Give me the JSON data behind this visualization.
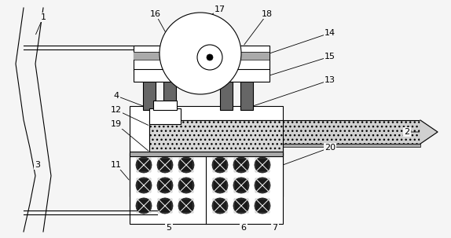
{
  "bg_color": "#ffffff",
  "fig_bg": "#f5f5f5",
  "line_color": "#000000",
  "figsize": [
    5.74,
    3.03
  ],
  "dpi": 100,
  "gray_col": "#888888",
  "dark_col": "#222222",
  "hatch_col": "#bbbbbb"
}
